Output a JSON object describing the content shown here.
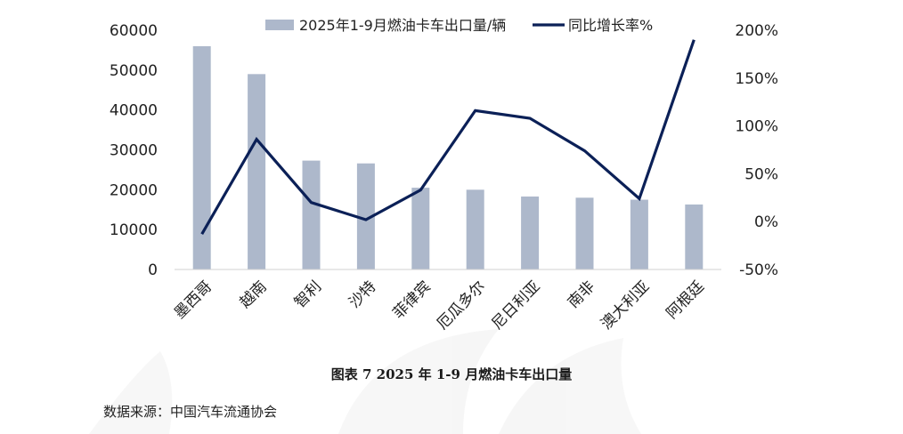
{
  "chart_data": {
    "type": "bar",
    "categories": [
      "墨西哥",
      "越南",
      "智利",
      "沙特",
      "菲律宾",
      "厄瓜多尔",
      "尼日利亚",
      "南非",
      "澳大利亚",
      "阿根廷"
    ],
    "series": [
      {
        "name": "2025年1-9月燃油卡车出口量/辆",
        "type": "bar",
        "axis": "left",
        "color": "#adb8cb",
        "values": [
          56000,
          49000,
          27300,
          26600,
          20500,
          20000,
          18300,
          18000,
          17500,
          16300
        ]
      },
      {
        "name": "同比增长率%",
        "type": "line",
        "axis": "right",
        "color": "#0b2057",
        "values": [
          -13,
          86,
          20,
          2,
          33,
          116,
          108,
          74,
          24,
          190
        ]
      }
    ],
    "left_axis": {
      "min": 0,
      "max": 60000,
      "ticks": [
        "0",
        "10000",
        "20000",
        "30000",
        "40000",
        "50000",
        "60000"
      ]
    },
    "right_axis": {
      "min": -50,
      "max": 200,
      "ticks": [
        "-50%",
        "0%",
        "50%",
        "100%",
        "150%",
        "200%"
      ]
    },
    "legend_position": "top-center",
    "grid": false
  },
  "caption": "图表 7 2025 年 1-9 月燃油卡车出口量",
  "source": "数据来源：中国汽车流通协会"
}
